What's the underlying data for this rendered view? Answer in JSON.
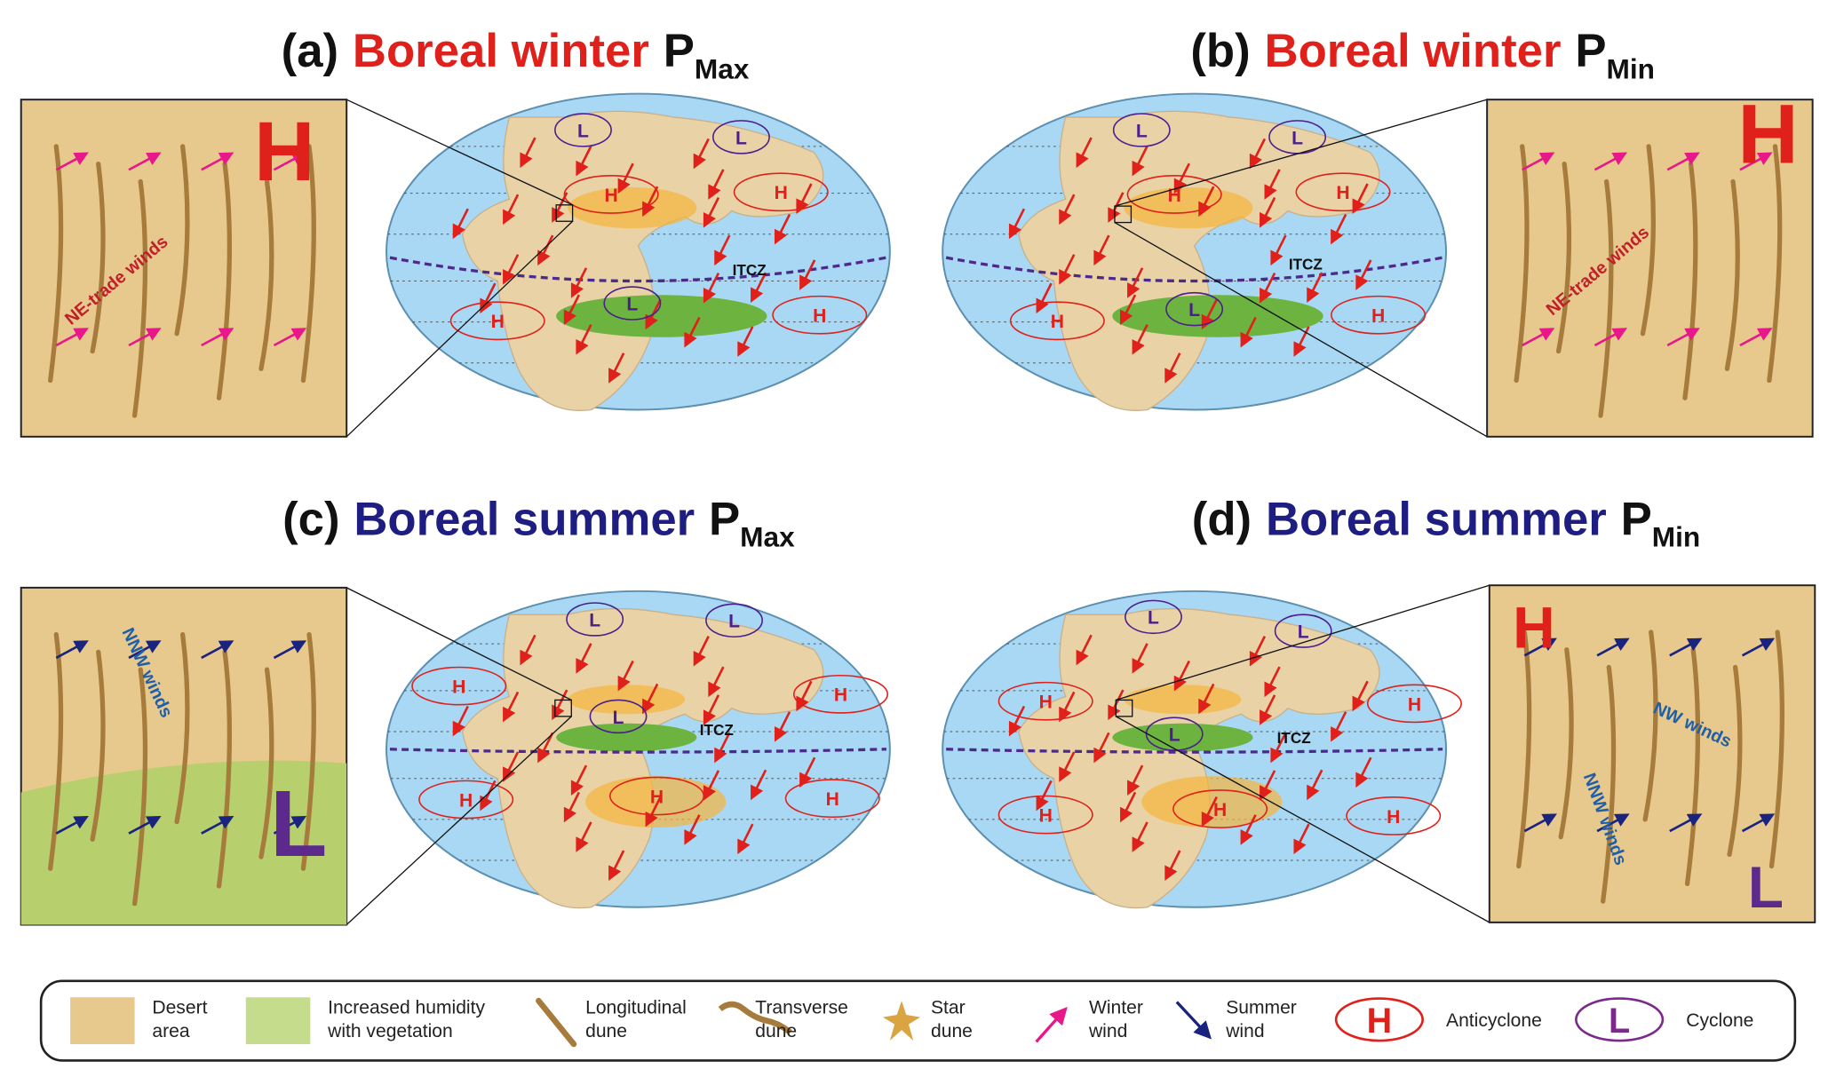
{
  "panels": [
    {
      "label": "(a)",
      "season": "Boreal winter",
      "p": "P",
      "sub": "Max",
      "inset_texts": [
        "H",
        "NE-trade winds"
      ],
      "map_texts": [
        "L",
        "L",
        "H",
        "H",
        "ITCZ",
        "L",
        "H",
        "H"
      ]
    },
    {
      "label": "(b)",
      "season": "Boreal winter",
      "p": "P",
      "sub": "Min",
      "inset_texts": [
        "H",
        "NE-trade winds"
      ],
      "map_texts": [
        "L",
        "L",
        "H",
        "H",
        "ITCZ",
        "L",
        "H",
        "H"
      ]
    },
    {
      "label": "(c)",
      "season": "Boreal summer",
      "p": "P",
      "sub": "Max",
      "inset_texts": [
        "NNW winds",
        "L"
      ],
      "map_texts": [
        "L",
        "L",
        "H",
        "L",
        "ITCZ",
        "H",
        "H",
        "H",
        "H"
      ]
    },
    {
      "label": "(d)",
      "season": "Boreal summer",
      "p": "P",
      "sub": "Min",
      "inset_texts": [
        "H",
        "NW winds",
        "NNW winds",
        "L"
      ],
      "map_texts": [
        "L",
        "L",
        "H",
        "L",
        "ITCZ",
        "H",
        "H",
        "H",
        "H"
      ]
    }
  ],
  "legend": {
    "items": [
      {
        "text": [
          "Desert",
          "area"
        ]
      },
      {
        "text": [
          "Increased humidity",
          "with vegetation"
        ]
      },
      {
        "text": [
          "Longitudinal",
          "dune"
        ]
      },
      {
        "text": [
          "Transverse",
          "dune"
        ]
      },
      {
        "text": [
          "Star",
          "dune"
        ]
      },
      {
        "text": [
          "Winter",
          "wind"
        ]
      },
      {
        "text": [
          "Summer",
          "wind"
        ]
      },
      {
        "text": [
          "Anticyclone"
        ],
        "icon": "H"
      },
      {
        "text": [
          "Cyclone"
        ],
        "icon": "L"
      }
    ]
  }
}
